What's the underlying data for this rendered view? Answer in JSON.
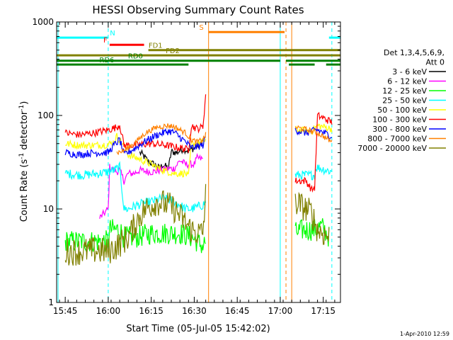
{
  "chart_data": {
    "type": "line",
    "title": "HESSI Observing Summary Count Rates",
    "xlabel": "Start Time (05-Jul-05 15:42:02)",
    "ylabel_main": "Count Rate (s",
    "ylabel_sup1": "-1",
    "ylabel_mid": " detector",
    "ylabel_sup2": "-1",
    "ylabel_end": ")",
    "y_scale": "log",
    "ylim": [
      1,
      1000
    ],
    "xlim_minutes": [
      -3,
      96
    ],
    "x_ticks": [
      {
        "m": 0,
        "label": "15:45"
      },
      {
        "m": 15,
        "label": "16:00"
      },
      {
        "m": 30,
        "label": "16:15"
      },
      {
        "m": 45,
        "label": "16:30"
      },
      {
        "m": 60,
        "label": "16:45"
      },
      {
        "m": 75,
        "label": "17:00"
      },
      {
        "m": 90,
        "label": "17:15"
      }
    ],
    "y_ticks": [
      {
        "v": 1,
        "label": "1"
      },
      {
        "v": 10,
        "label": "10"
      },
      {
        "v": 100,
        "label": "100"
      },
      {
        "v": 1000,
        "label": "1000"
      }
    ],
    "timestamp": "1-Apr-2010 12:59",
    "legend_header": [
      "Det 1,3,4,5,6,9,",
      "Att 0"
    ],
    "legend_placement": "right",
    "flags": [
      {
        "label": "N",
        "color": "#00ffff",
        "y": 680,
        "segments": [
          [
            -3,
            15
          ],
          [
            92,
            96
          ]
        ],
        "label_at": 16.5
      },
      {
        "label": "F",
        "color": "#ff0000",
        "y": 570,
        "segments": [
          [
            15.5,
            27.5
          ]
        ],
        "label_at": 14
      },
      {
        "label": "S",
        "color": "#ff8000",
        "y": 780,
        "segments": [
          [
            50,
            76.5
          ]
        ],
        "label_at": 47.5
      },
      {
        "label": "FD1",
        "color": "#808000",
        "y": 500,
        "segments": [
          [
            29,
            96
          ]
        ],
        "label_at": 31.5
      },
      {
        "label": "FD2",
        "color": "#808000",
        "y": 440,
        "segments": [
          [
            -3,
            96
          ]
        ],
        "label_at": 37.5
      },
      {
        "label": "RD0",
        "color": "#008000",
        "y": 385,
        "segments": [
          [
            -3,
            75
          ],
          [
            77,
            96
          ]
        ],
        "label_at": 24.5
      },
      {
        "label": "RD6",
        "color": "#008000",
        "y": 350,
        "segments": [
          [
            -3,
            43
          ],
          [
            78,
            87
          ],
          [
            91,
            96
          ]
        ],
        "label_at": 14.5
      }
    ],
    "vlines": [
      {
        "m": 15,
        "color": "#00ffff",
        "dashed": true
      },
      {
        "m": 75,
        "color": "#00ffff",
        "dashed": false
      },
      {
        "m": 93,
        "color": "#00ffff",
        "dashed": true
      },
      {
        "m": -2.5,
        "color": "#00ffff",
        "dashed": false
      },
      {
        "m": 50,
        "color": "#ff8000",
        "dashed": false
      },
      {
        "m": 77,
        "color": "#ff8000",
        "dashed": true
      },
      {
        "m": 79,
        "color": "#ff8000",
        "dashed": false
      }
    ],
    "series": [
      {
        "name": "3 - 6 keV",
        "color": "#000000",
        "noise": 0.04,
        "points": [
          [
            26,
            40
          ],
          [
            27,
            38
          ],
          [
            29,
            32
          ],
          [
            31,
            30
          ],
          [
            33,
            27
          ],
          [
            34,
            30
          ],
          [
            36,
            27
          ],
          [
            37,
            41
          ],
          [
            39,
            40
          ],
          [
            41,
            44
          ],
          [
            43,
            42
          ],
          [
            45,
            45
          ],
          [
            47,
            48
          ],
          [
            48,
            55
          ]
        ]
      },
      {
        "name": "6 - 12 keV",
        "color": "#ff00ff",
        "noise": 0.04,
        "points": [
          [
            12,
            8
          ],
          [
            15,
            10
          ],
          [
            15.5,
            28
          ],
          [
            18,
            25
          ],
          [
            19,
            26
          ],
          [
            20.5,
            20
          ],
          [
            22,
            24
          ],
          [
            24,
            24
          ],
          [
            26,
            26
          ],
          [
            29,
            25
          ],
          [
            31,
            25
          ],
          [
            33,
            26
          ],
          [
            36,
            27
          ],
          [
            38,
            27
          ],
          [
            40,
            33
          ],
          [
            42,
            30
          ],
          [
            45,
            30
          ],
          [
            46,
            35
          ],
          [
            48,
            34
          ]
        ]
      },
      {
        "name": "12 - 25 keV",
        "color": "#00ff00",
        "noise": 0.12,
        "points": [
          [
            0,
            4.5
          ],
          [
            15,
            4.5
          ],
          [
            15.5,
            6
          ],
          [
            19,
            6
          ],
          [
            20.5,
            5
          ],
          [
            22,
            5
          ],
          [
            25,
            5
          ],
          [
            30,
            5.5
          ],
          [
            35,
            5.5
          ],
          [
            40,
            5.5
          ],
          [
            44,
            5
          ],
          [
            46,
            4.5
          ],
          [
            48,
            4
          ],
          [
            49,
            4.5
          ],
          [
            80,
            5.5
          ],
          [
            83,
            6
          ],
          [
            87,
            6
          ],
          [
            89,
            6.5
          ],
          [
            90,
            6.2
          ],
          [
            92,
            5
          ]
        ]
      },
      {
        "name": "25 - 50 keV",
        "color": "#00ffff",
        "noise": 0.05,
        "points": [
          [
            0,
            24
          ],
          [
            6,
            23
          ],
          [
            12,
            24
          ],
          [
            15,
            25
          ],
          [
            17,
            26
          ],
          [
            19,
            28
          ],
          [
            20.5,
            10
          ],
          [
            22,
            10
          ],
          [
            25,
            11
          ],
          [
            30,
            12
          ],
          [
            34,
            13
          ],
          [
            38,
            12
          ],
          [
            42,
            10
          ],
          [
            44,
            10
          ],
          [
            48,
            11
          ],
          [
            49,
            12
          ],
          [
            80,
            23
          ],
          [
            87,
            23
          ],
          [
            87.5,
            28
          ],
          [
            93,
            25
          ]
        ]
      },
      {
        "name": "50 - 100 keV",
        "color": "#ffff00",
        "noise": 0.04,
        "points": [
          [
            0,
            50
          ],
          [
            5,
            48
          ],
          [
            10,
            48
          ],
          [
            15,
            49
          ],
          [
            17,
            52
          ],
          [
            18,
            60
          ],
          [
            20.5,
            48
          ],
          [
            22,
            38
          ],
          [
            26,
            34
          ],
          [
            30,
            30
          ],
          [
            34,
            26
          ],
          [
            38,
            24
          ],
          [
            42,
            24
          ],
          [
            43,
            22
          ],
          [
            44,
            50
          ],
          [
            46,
            50
          ],
          [
            48,
            52
          ],
          [
            49,
            55
          ],
          [
            80,
            70
          ],
          [
            86,
            68
          ],
          [
            88,
            78
          ],
          [
            93,
            72
          ]
        ]
      },
      {
        "name": "100 - 300 keV",
        "color": "#ff0000",
        "noise": 0.04,
        "points": [
          [
            0,
            65
          ],
          [
            5,
            62
          ],
          [
            10,
            65
          ],
          [
            15,
            70
          ],
          [
            18,
            75
          ],
          [
            19,
            80
          ],
          [
            20.5,
            48
          ],
          [
            24,
            48
          ],
          [
            30,
            50
          ],
          [
            35,
            48
          ],
          [
            40,
            45
          ],
          [
            43,
            43
          ],
          [
            44,
            78
          ],
          [
            46,
            72
          ],
          [
            48,
            75
          ],
          [
            49,
            165
          ],
          [
            80,
            20
          ],
          [
            84,
            20
          ],
          [
            86,
            16
          ],
          [
            87,
            17
          ],
          [
            88,
            100
          ],
          [
            93,
            85
          ]
        ]
      },
      {
        "name": "300 - 800 keV",
        "color": "#0000ff",
        "noise": 0.04,
        "points": [
          [
            0,
            40
          ],
          [
            5,
            38
          ],
          [
            10,
            40
          ],
          [
            15,
            40
          ],
          [
            17,
            48
          ],
          [
            19,
            55
          ],
          [
            20.5,
            38
          ],
          [
            24,
            44
          ],
          [
            28,
            53
          ],
          [
            32,
            62
          ],
          [
            36,
            68
          ],
          [
            38,
            66
          ],
          [
            42,
            52
          ],
          [
            44,
            45
          ],
          [
            48,
            48
          ],
          [
            49,
            60
          ],
          [
            80,
            70
          ],
          [
            84,
            65
          ],
          [
            88,
            70
          ],
          [
            93,
            60
          ]
        ]
      },
      {
        "name": "800 - 7000 keV",
        "color": "#ff8000",
        "noise": 0.03,
        "points": [
          [
            18,
            40
          ],
          [
            20.5,
            42
          ],
          [
            24,
            50
          ],
          [
            28,
            65
          ],
          [
            32,
            75
          ],
          [
            36,
            78
          ],
          [
            38,
            76
          ],
          [
            42,
            65
          ],
          [
            44,
            55
          ],
          [
            46,
            52
          ],
          [
            48,
            55
          ],
          [
            49,
            62
          ],
          [
            80,
            75
          ],
          [
            83,
            72
          ],
          [
            86,
            68
          ],
          [
            88,
            65
          ],
          [
            90,
            60
          ],
          [
            93,
            52
          ]
        ]
      },
      {
        "name": "7000 - 20000 keV",
        "color": "#808000",
        "noise": 0.15,
        "points": [
          [
            0,
            3.5
          ],
          [
            5,
            3.5
          ],
          [
            10,
            3.6
          ],
          [
            15,
            3.5
          ],
          [
            18,
            4
          ],
          [
            20,
            4.5
          ],
          [
            22,
            5
          ],
          [
            24,
            6.5
          ],
          [
            26,
            8.5
          ],
          [
            28,
            10
          ],
          [
            30,
            11
          ],
          [
            32,
            12
          ],
          [
            34,
            11.5
          ],
          [
            36,
            11
          ],
          [
            38,
            10
          ],
          [
            40,
            8.5
          ],
          [
            42,
            7
          ],
          [
            44,
            6
          ],
          [
            46,
            5.5
          ],
          [
            48,
            5.5
          ],
          [
            49,
            14
          ],
          [
            80,
            12
          ],
          [
            84,
            10
          ],
          [
            86,
            9
          ],
          [
            88,
            6
          ],
          [
            90,
            5.5
          ],
          [
            92,
            5
          ]
        ]
      }
    ]
  }
}
